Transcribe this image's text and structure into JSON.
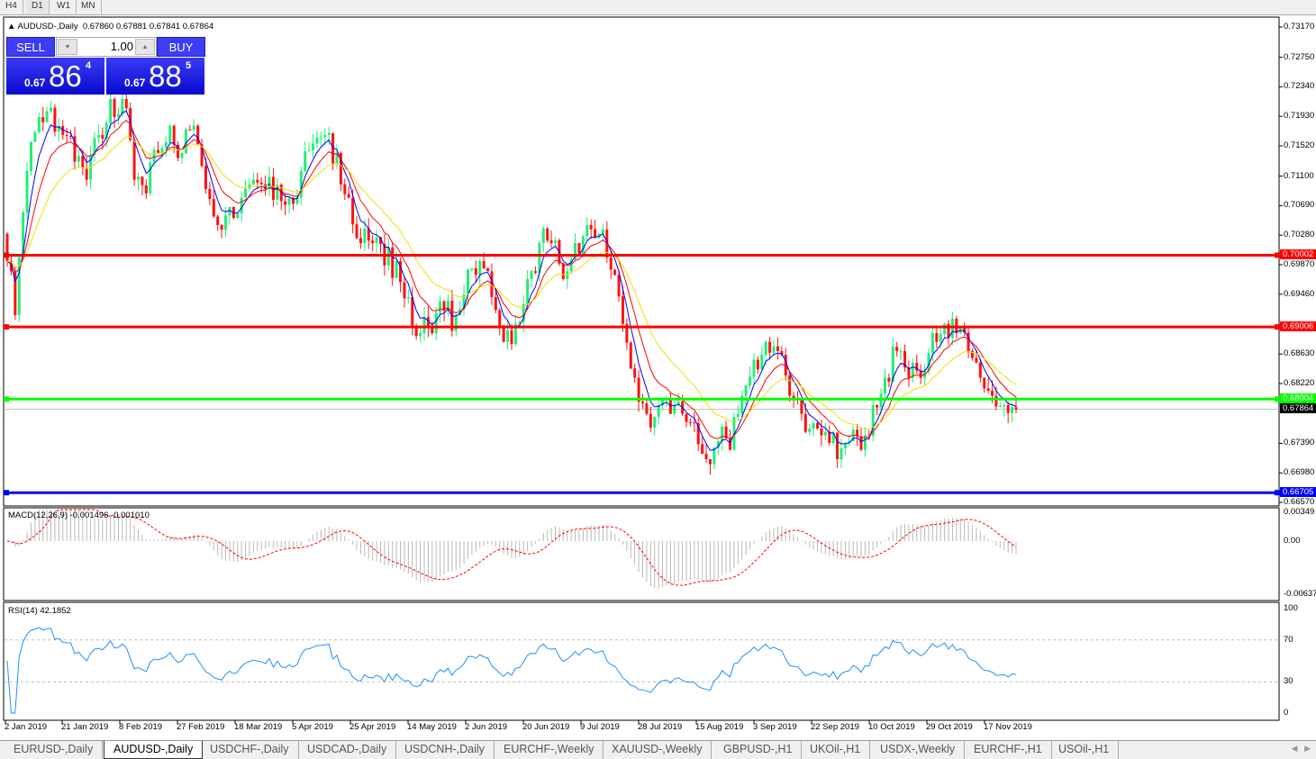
{
  "timeframes": [
    "H4",
    "D1",
    "W1",
    "MN"
  ],
  "active_timeframe": "D1",
  "header": {
    "symbol": "AUDUSD-,Daily",
    "ohlc": "0.67860 0.67881 0.67841 0.67864"
  },
  "trade_panel": {
    "sell_label": "SELL",
    "buy_label": "BUY",
    "lot": "1.00",
    "sell_prefix": "0.67",
    "sell_big": "86",
    "sell_sup": "4",
    "buy_prefix": "0.67",
    "buy_big": "88",
    "buy_sup": "5"
  },
  "chart_data": {
    "type": "candlestick",
    "price_axis": [
      "0.73170",
      "0.72750",
      "0.72340",
      "0.71930",
      "0.71520",
      "0.71100",
      "0.70690",
      "0.70280",
      "0.69870",
      "0.69460",
      "0.68630",
      "0.68220",
      "0.67390",
      "0.66980",
      "0.66570"
    ],
    "ylim": [
      0.6657,
      0.7317
    ],
    "date_labels": [
      "2 Jan 2019",
      "21 Jan 2019",
      "8 Feb 2019",
      "27 Feb 2019",
      "18 Mar 2019",
      "5 Apr 2019",
      "25 Apr 2019",
      "14 May 2019",
      "2 Jun 2019",
      "20 Jun 2019",
      "9 Jul 2019",
      "28 Jul 2019",
      "15 Aug 2019",
      "3 Sep 2019",
      "22 Sep 2019",
      "10 Oct 2019",
      "29 Oct 2019",
      "17 Nov 2019"
    ],
    "closes": [
      0.703,
      0.6917,
      0.7117,
      0.7192,
      0.7205,
      0.7167,
      0.713,
      0.7105,
      0.7167,
      0.7217,
      0.7217,
      0.7105,
      0.7086,
      0.7142,
      0.718,
      0.7142,
      0.718,
      0.7092,
      0.7042,
      0.7067,
      0.708,
      0.7105,
      0.7092,
      0.7098,
      0.708,
      0.7117,
      0.7155,
      0.7167,
      0.7142,
      0.708,
      0.7017,
      0.7017,
      0.6986,
      0.6992,
      0.6942,
      0.6892,
      0.6892,
      0.6923,
      0.6917,
      0.698,
      0.6992,
      0.6942,
      0.688,
      0.6905,
      0.6967,
      0.7017,
      0.7017,
      0.6967,
      0.7017,
      0.7042,
      0.703,
      0.698,
      0.6905,
      0.683,
      0.678,
      0.6792,
      0.678,
      0.678,
      0.6767,
      0.6717,
      0.6742,
      0.673,
      0.6805,
      0.6855,
      0.688,
      0.6867,
      0.6805,
      0.678,
      0.6767,
      0.6755,
      0.6717,
      0.6742,
      0.673,
      0.6792,
      0.683,
      0.6867,
      0.683,
      0.683,
      0.6892,
      0.6905,
      0.6892,
      0.6867,
      0.683,
      0.6805,
      0.6792,
      0.6786
    ],
    "levels": [
      {
        "price": 0.70002,
        "label": "0.70002",
        "color": "#ff0000"
      },
      {
        "price": 0.69006,
        "label": "0.69006",
        "color": "#ff0000"
      },
      {
        "price": 0.68004,
        "label": "0.68004",
        "color": "#00ff00"
      },
      {
        "price": 0.66705,
        "label": "0.66705",
        "color": "#0000ff"
      }
    ],
    "current": {
      "price": 0.67864,
      "label": "0.67864"
    },
    "colors": {
      "bull": "#22ee77",
      "bear": "#ff1111",
      "ma_fast": "#0000ff",
      "ma_mid": "#ff0000",
      "ma_slow": "#ffff00"
    },
    "macd": {
      "label": "MACD(12,26,9) -0.001496 -0.001010",
      "axis": [
        "0.00349",
        "0.00",
        "-0.00637"
      ]
    },
    "rsi": {
      "label": "RSI(14) 42.1852",
      "axis": [
        "100",
        "70",
        "30",
        "0"
      ]
    }
  },
  "tabs": [
    "EURUSD-,Daily",
    "AUDUSD-,Daily",
    "USDCHF-,Daily",
    "USDCAD-,Daily",
    "USDCNH-,Daily",
    "EURCHF-,Weekly",
    "XAUUSD-,Weekly",
    "GBPUSD-,H1",
    "UKOil-,H1",
    "USDX-,Weekly",
    "EURCHF-,H1",
    "USOil-,H1"
  ],
  "active_tab": "AUDUSD-,Daily"
}
